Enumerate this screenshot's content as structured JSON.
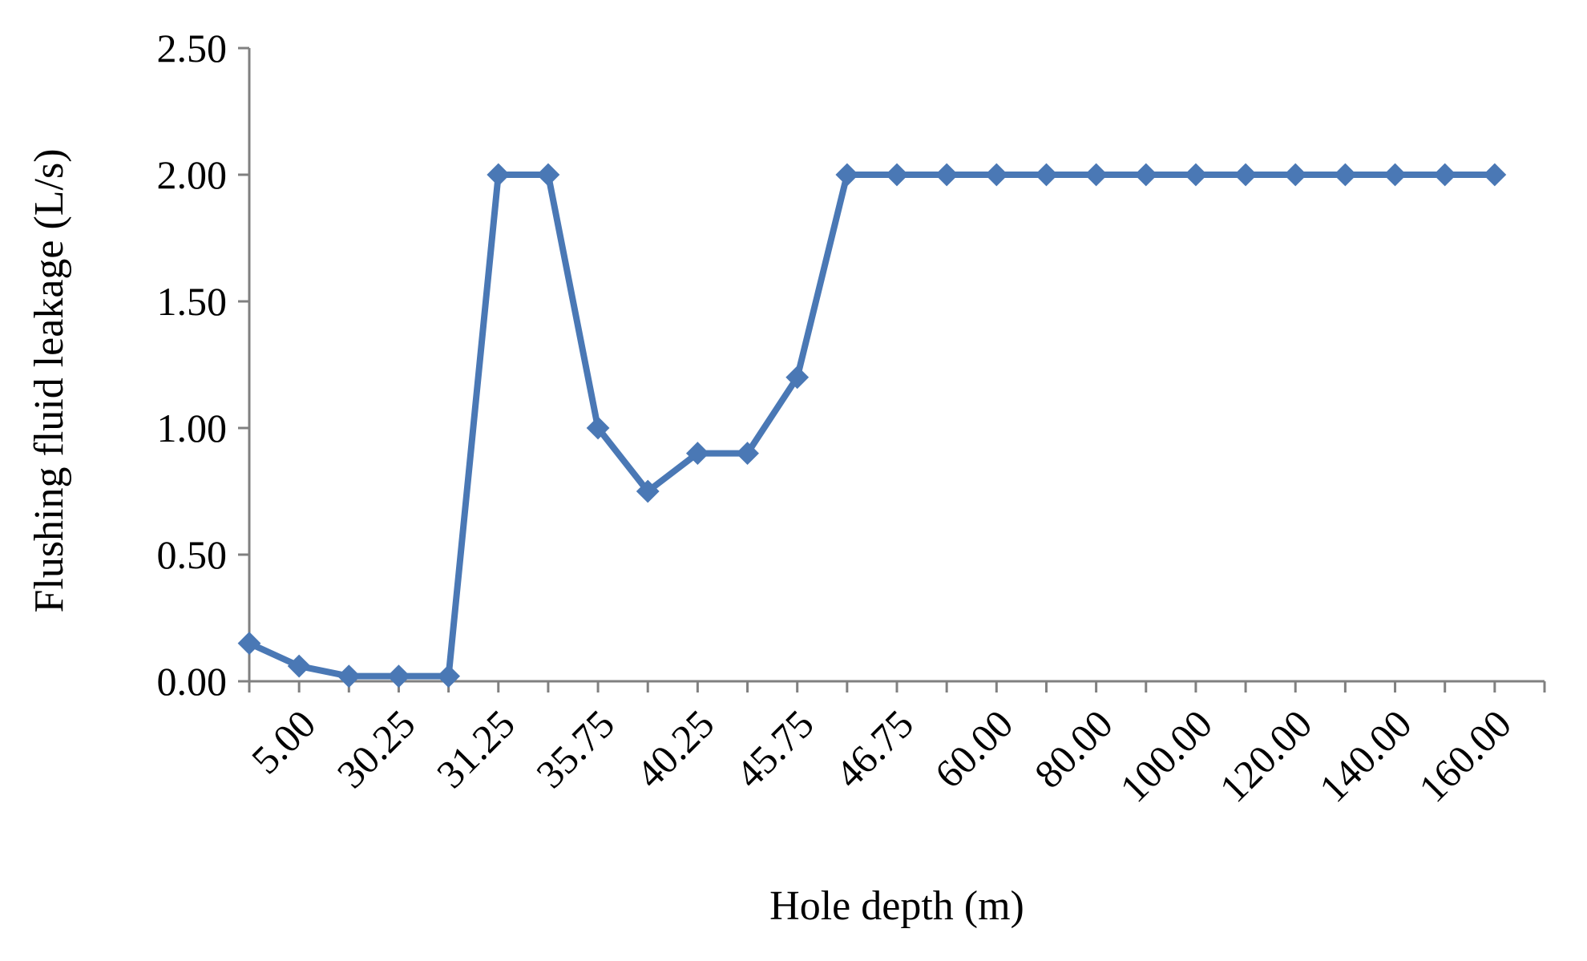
{
  "chart_data": {
    "type": "line",
    "title": "",
    "xlabel": "Hole depth (m)",
    "ylabel": "Flushing fluid leakage (L/s)",
    "ylim": [
      0,
      2.5
    ],
    "yticks": [
      "0.00",
      "0.50",
      "1.00",
      "1.50",
      "2.00",
      "2.50"
    ],
    "categories": [
      "5.00",
      "",
      "30.25",
      "",
      "31.25",
      "",
      "35.75",
      "",
      "40.25",
      "",
      "45.75",
      "",
      "46.75",
      "",
      "60.00",
      "",
      "80.00",
      "",
      "100.00",
      "",
      "120.00",
      "",
      "140.00",
      "",
      "160.00",
      ""
    ],
    "series": [
      {
        "color": "#4a78b5",
        "marker": "diamond",
        "values": [
          0.15,
          0.06,
          0.02,
          0.02,
          0.02,
          2.0,
          2.0,
          1.0,
          0.75,
          0.9,
          0.9,
          1.2,
          2.0,
          2.0,
          2.0,
          2.0,
          2.0,
          2.0,
          2.0,
          2.0,
          2.0,
          2.0,
          2.0,
          2.0,
          2.0,
          2.0
        ]
      }
    ],
    "grid": false,
    "legend": "none"
  }
}
